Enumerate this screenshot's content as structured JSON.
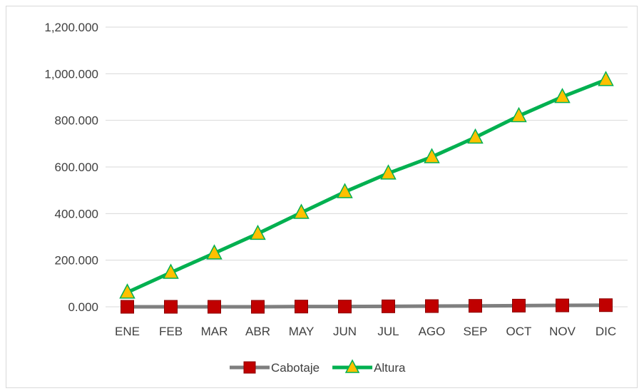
{
  "chart_data": {
    "type": "line",
    "categories": [
      "ENE",
      "FEB",
      "MAR",
      "ABR",
      "MAY",
      "JUN",
      "JUL",
      "AGO",
      "SEP",
      "OCT",
      "NOV",
      "DIC"
    ],
    "y_ticks": [
      "0.000",
      "200.000",
      "400.000",
      "600.000",
      "800.000",
      "1,000.000",
      "1,200.000"
    ],
    "ylim": [
      0,
      1200
    ],
    "grid": true,
    "legend_position": "bottom",
    "series": [
      {
        "name": "Cabotaje",
        "color": "#7f7f7f",
        "marker_color": "#c00000",
        "marker": "square",
        "values": [
          0,
          0,
          0,
          0,
          1,
          1,
          2,
          3,
          4,
          5,
          6,
          7
        ]
      },
      {
        "name": "Altura",
        "color": "#00b050",
        "marker_color": "#ffc000",
        "marker": "triangle",
        "values": [
          62,
          147,
          230,
          314,
          404,
          493,
          573,
          643,
          727,
          819,
          901,
          974
        ]
      }
    ]
  }
}
